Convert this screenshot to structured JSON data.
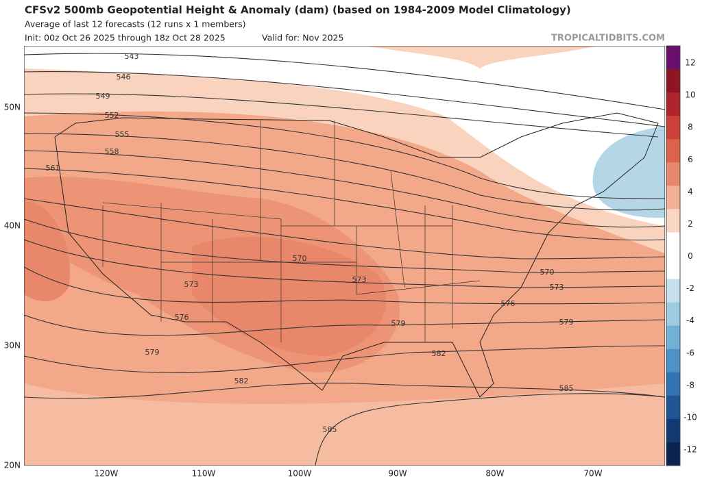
{
  "header": {
    "title": "CFSv2 500mb Geopotential Height & Anomaly (dam) (based on 1984-2009 Model Climatology)",
    "subtitle": "Average of last 12 forecasts (12 runs x 1 members)",
    "init": "Init: 00z Oct 26 2025 through 18z Oct 28 2025",
    "valid": "Valid for: Nov 2025",
    "site": "TROPICALTIDBITS.COM"
  },
  "map": {
    "lat_labels": [
      "50N",
      "40N",
      "30N",
      "20N"
    ],
    "lon_labels": [
      "120W",
      "110W",
      "100W",
      "90W",
      "80W",
      "70W"
    ],
    "contour_labels": [
      "543",
      "546",
      "549",
      "552",
      "555",
      "558",
      "561",
      "570",
      "573",
      "573",
      "576",
      "579",
      "582",
      "585",
      "570",
      "573",
      "576",
      "579",
      "579",
      "582",
      "585"
    ]
  },
  "colorbar": {
    "labels": [
      "12",
      "10",
      "8",
      "6",
      "4",
      "2",
      "0",
      "-2",
      "-4",
      "-6",
      "-8",
      "-10",
      "-12"
    ]
  }
}
